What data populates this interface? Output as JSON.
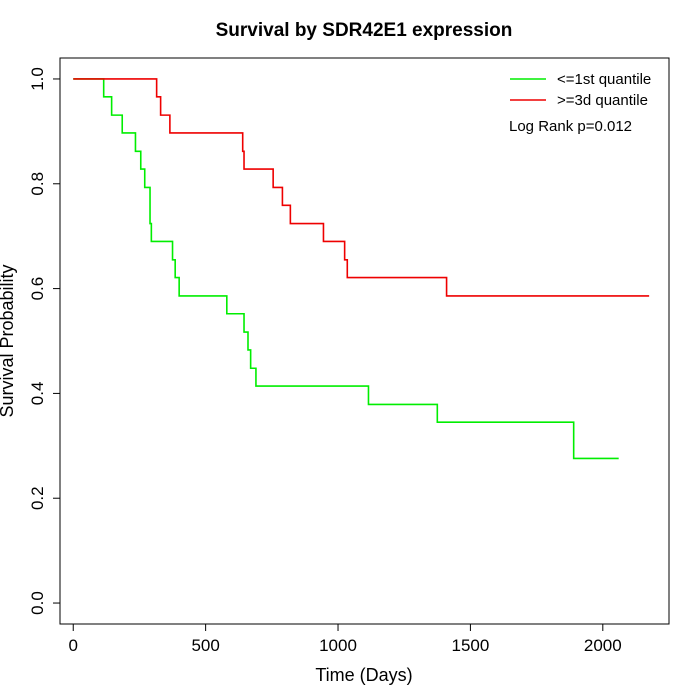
{
  "chart_data": {
    "type": "line",
    "title": "Survival by SDR42E1 expression",
    "xlabel": "Time (Days)",
    "ylabel": "Survival Probability",
    "xlim": [
      -50,
      2250
    ],
    "ylim": [
      -0.04,
      1.04
    ],
    "x_ticks": [
      0,
      500,
      1000,
      1500,
      2000
    ],
    "y_ticks": [
      0.0,
      0.2,
      0.4,
      0.6,
      0.8,
      1.0
    ],
    "x_tick_labels": [
      "0",
      "500",
      "1000",
      "1500",
      "2000"
    ],
    "y_tick_labels": [
      "0.0",
      "0.2",
      "0.4",
      "0.6",
      "0.8",
      "1.0"
    ],
    "legend_position": "top-right",
    "annotation": "Log Rank p=0.012",
    "series": [
      {
        "name": "<=1st quantile",
        "color": "#00ee00",
        "step_x": [
          0,
          115,
          145,
          185,
          235,
          255,
          270,
          290,
          295,
          305,
          375,
          385,
          400,
          580,
          645,
          660,
          670,
          690,
          1115,
          1375,
          1890,
          2060
        ],
        "step_y": [
          1.0,
          0.966,
          0.931,
          0.897,
          0.862,
          0.828,
          0.793,
          0.724,
          0.69,
          0.69,
          0.655,
          0.621,
          0.586,
          0.552,
          0.517,
          0.483,
          0.448,
          0.414,
          0.379,
          0.345,
          0.276,
          0.276
        ]
      },
      {
        "name": ">=3d quantile",
        "color": "#ee0000",
        "step_x": [
          0,
          315,
          330,
          365,
          640,
          645,
          755,
          790,
          820,
          945,
          1025,
          1035,
          1410,
          2175
        ],
        "step_y": [
          1.0,
          0.966,
          0.931,
          0.897,
          0.862,
          0.828,
          0.793,
          0.759,
          0.724,
          0.69,
          0.655,
          0.621,
          0.586,
          0.586
        ]
      }
    ]
  }
}
